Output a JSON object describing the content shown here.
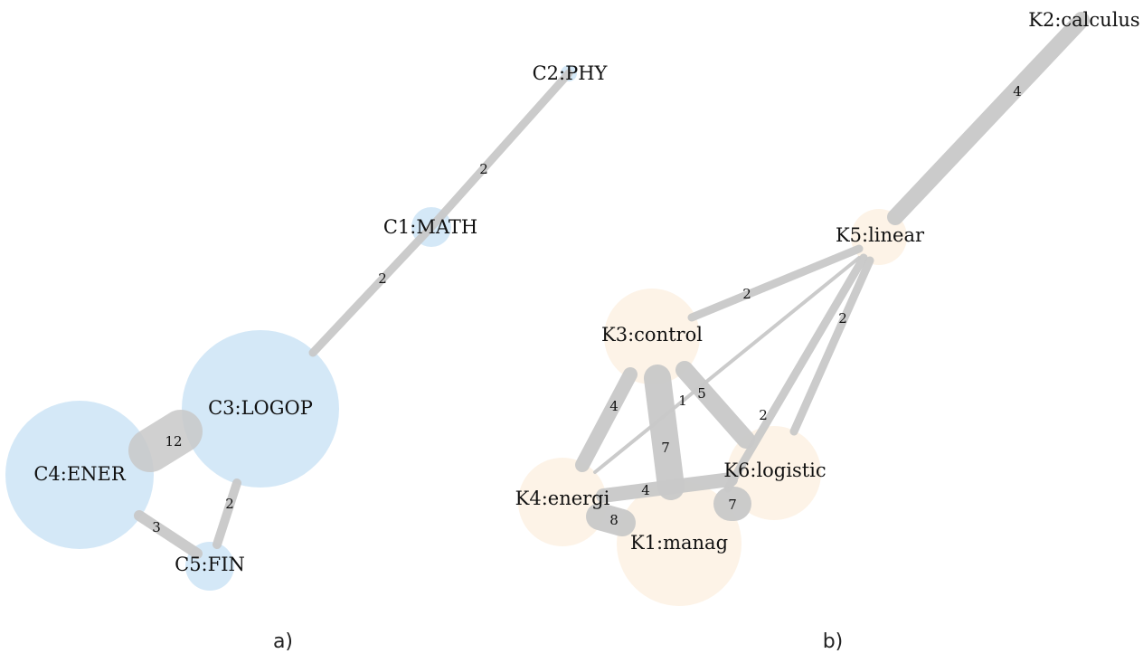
{
  "colors": {
    "a_node": "#d4e8f7",
    "b_node": "#fdf3e7",
    "edge": "#c8c8c8",
    "text": "#111111"
  },
  "panels": [
    {
      "id": "a",
      "label": "a)",
      "nodes": [
        {
          "id": "C1",
          "label": "C1:MATH"
        },
        {
          "id": "C2",
          "label": "C2:PHY"
        },
        {
          "id": "C3",
          "label": "C3:LOGOP"
        },
        {
          "id": "C4",
          "label": "C4:ENER"
        },
        {
          "id": "C5",
          "label": "C5:FIN"
        }
      ],
      "edges": [
        {
          "source": "C2",
          "target": "C1",
          "weight": "2"
        },
        {
          "source": "C1",
          "target": "C3",
          "weight": "2"
        },
        {
          "source": "C3",
          "target": "C4",
          "weight": "12"
        },
        {
          "source": "C3",
          "target": "C5",
          "weight": "2"
        },
        {
          "source": "C4",
          "target": "C5",
          "weight": "3"
        }
      ]
    },
    {
      "id": "b",
      "label": "b)",
      "nodes": [
        {
          "id": "K1",
          "label": "K1:manag"
        },
        {
          "id": "K2",
          "label": "K2:calculus"
        },
        {
          "id": "K3",
          "label": "K3:control"
        },
        {
          "id": "K4",
          "label": "K4:energi"
        },
        {
          "id": "K5",
          "label": "K5:linear"
        },
        {
          "id": "K6",
          "label": "K6:logistic"
        }
      ],
      "edges": [
        {
          "source": "K2",
          "target": "K5",
          "weight": "4"
        },
        {
          "source": "K5",
          "target": "K3",
          "weight": "2"
        },
        {
          "source": "K5",
          "target": "K4",
          "weight": "1"
        },
        {
          "source": "K5",
          "target": "K1",
          "weight": "2"
        },
        {
          "source": "K5",
          "target": "K6",
          "weight": "2"
        },
        {
          "source": "K3",
          "target": "K4",
          "weight": "4"
        },
        {
          "source": "K3",
          "target": "K1",
          "weight": "7"
        },
        {
          "source": "K3",
          "target": "K6",
          "weight": "5"
        },
        {
          "source": "K4",
          "target": "K6",
          "weight": "4"
        },
        {
          "source": "K4",
          "target": "K1",
          "weight": "8"
        },
        {
          "source": "K1",
          "target": "K6",
          "weight": "7"
        }
      ]
    }
  ]
}
